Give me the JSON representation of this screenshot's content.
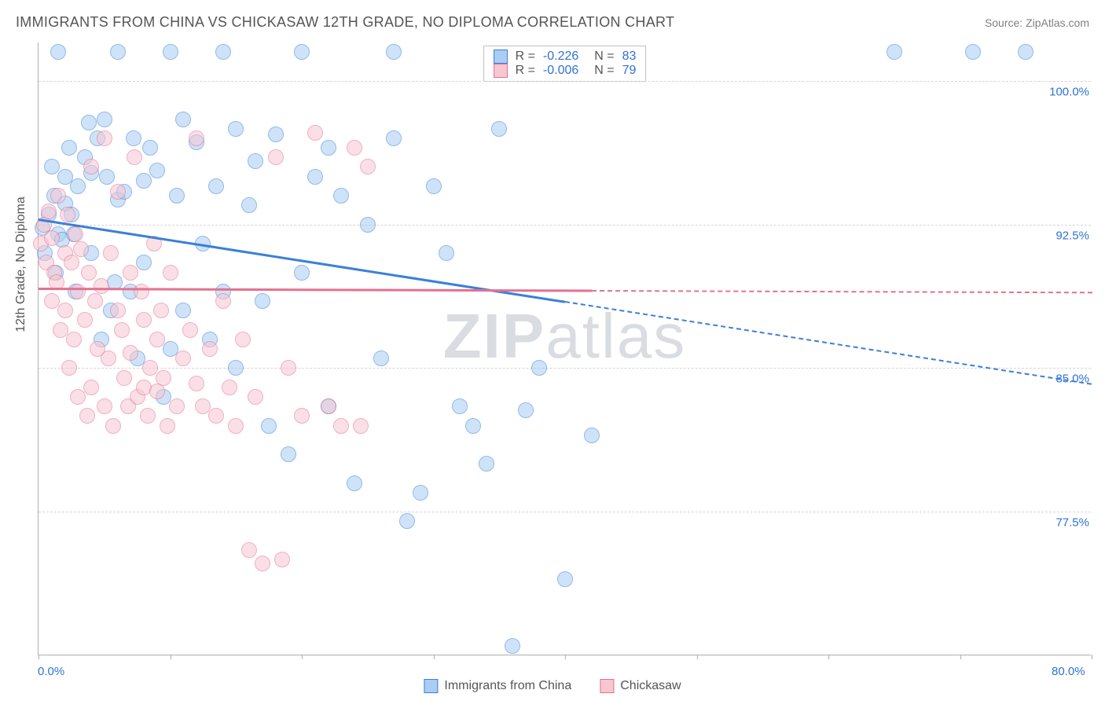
{
  "title": "IMMIGRANTS FROM CHINA VS CHICKASAW 12TH GRADE, NO DIPLOMA CORRELATION CHART",
  "source_label": "Source: ZipAtlas.com",
  "y_axis_label": "12th Grade, No Diploma",
  "watermark": {
    "bold": "ZIP",
    "light": "atlas"
  },
  "chart": {
    "type": "scatter",
    "background_color": "#ffffff",
    "grid_color": "#d5d5d5",
    "axis_color": "#b0b0b0",
    "xlim": [
      0,
      80
    ],
    "ylim": [
      70,
      102
    ],
    "x_ticks": [
      0,
      10,
      20,
      30,
      40,
      50,
      60,
      70,
      80
    ],
    "x_tick_labels": {
      "0": "0.0%",
      "80": "80.0%"
    },
    "y_ticks": [
      77.5,
      85.0,
      92.5,
      100.0
    ],
    "y_tick_labels": [
      "77.5%",
      "85.0%",
      "92.5%",
      "100.0%"
    ],
    "marker_radius": 10,
    "marker_opacity": 0.55,
    "label_fontsize": 15,
    "tick_color": "#2f72d6"
  },
  "series": [
    {
      "name": "Immigrants from China",
      "color_fill": "#a9cdf3",
      "color_stroke": "#3a80d8",
      "R": "-0.226",
      "N": "83",
      "regression": {
        "x1": 0,
        "y1": 92.8,
        "x2": 80,
        "y2": 84.2,
        "dash_after_x": 40
      },
      "points": [
        [
          0.3,
          92.3
        ],
        [
          0.5,
          91.0
        ],
        [
          0.8,
          93.0
        ],
        [
          1.0,
          95.5
        ],
        [
          1.2,
          94.0
        ],
        [
          1.3,
          90.0
        ],
        [
          1.5,
          92.0
        ],
        [
          1.5,
          101.5
        ],
        [
          1.8,
          91.7
        ],
        [
          2.0,
          95.0
        ],
        [
          2.0,
          93.6
        ],
        [
          2.3,
          96.5
        ],
        [
          2.5,
          93.0
        ],
        [
          2.7,
          92.0
        ],
        [
          2.8,
          89.0
        ],
        [
          3.0,
          94.5
        ],
        [
          3.5,
          96.0
        ],
        [
          3.8,
          97.8
        ],
        [
          4.0,
          95.2
        ],
        [
          4.0,
          91.0
        ],
        [
          4.5,
          97.0
        ],
        [
          4.8,
          86.5
        ],
        [
          5.0,
          98.0
        ],
        [
          5.2,
          95.0
        ],
        [
          5.5,
          88.0
        ],
        [
          5.8,
          89.5
        ],
        [
          6.0,
          93.8
        ],
        [
          6.0,
          101.5
        ],
        [
          6.5,
          94.2
        ],
        [
          7.0,
          89.0
        ],
        [
          7.2,
          97.0
        ],
        [
          7.5,
          85.5
        ],
        [
          8.0,
          90.5
        ],
        [
          8.0,
          94.8
        ],
        [
          8.5,
          96.5
        ],
        [
          9.0,
          95.3
        ],
        [
          9.5,
          83.5
        ],
        [
          10.0,
          86.0
        ],
        [
          10.0,
          101.5
        ],
        [
          10.5,
          94.0
        ],
        [
          11.0,
          88.0
        ],
        [
          11.0,
          98.0
        ],
        [
          12.0,
          96.8
        ],
        [
          12.5,
          91.5
        ],
        [
          13.0,
          86.5
        ],
        [
          13.5,
          94.5
        ],
        [
          14.0,
          101.5
        ],
        [
          14.0,
          89.0
        ],
        [
          15.0,
          85.0
        ],
        [
          15.0,
          97.5
        ],
        [
          16.0,
          93.5
        ],
        [
          16.5,
          95.8
        ],
        [
          17.0,
          88.5
        ],
        [
          17.5,
          82.0
        ],
        [
          18.0,
          97.2
        ],
        [
          19.0,
          80.5
        ],
        [
          20.0,
          101.5
        ],
        [
          20.0,
          90.0
        ],
        [
          21.0,
          95.0
        ],
        [
          22.0,
          96.5
        ],
        [
          22.0,
          83.0
        ],
        [
          23.0,
          94.0
        ],
        [
          24.0,
          79.0
        ],
        [
          25.0,
          92.5
        ],
        [
          26.0,
          85.5
        ],
        [
          27.0,
          97.0
        ],
        [
          27.0,
          101.5
        ],
        [
          28.0,
          77.0
        ],
        [
          29.0,
          78.5
        ],
        [
          30.0,
          94.5
        ],
        [
          31.0,
          91.0
        ],
        [
          32.0,
          83.0
        ],
        [
          33.0,
          82.0
        ],
        [
          34.0,
          80.0
        ],
        [
          35.0,
          97.5
        ],
        [
          36.0,
          70.5
        ],
        [
          37.0,
          82.8
        ],
        [
          38.0,
          85.0
        ],
        [
          40.0,
          74.0
        ],
        [
          42.0,
          81.5
        ],
        [
          65.0,
          101.5
        ],
        [
          71.0,
          101.5
        ],
        [
          75.0,
          101.5
        ]
      ]
    },
    {
      "name": "Chickasaw",
      "color_fill": "#f6c6d2",
      "color_stroke": "#e4718f",
      "R": "-0.006",
      "N": "79",
      "regression": {
        "x1": 0,
        "y1": 89.2,
        "x2": 80,
        "y2": 89.0,
        "dash_after_x": 42
      },
      "points": [
        [
          0.2,
          91.5
        ],
        [
          0.4,
          92.5
        ],
        [
          0.6,
          90.5
        ],
        [
          0.8,
          93.2
        ],
        [
          1.0,
          91.8
        ],
        [
          1.0,
          88.5
        ],
        [
          1.2,
          90.0
        ],
        [
          1.4,
          89.5
        ],
        [
          1.5,
          94.0
        ],
        [
          1.7,
          87.0
        ],
        [
          2.0,
          88.0
        ],
        [
          2.0,
          91.0
        ],
        [
          2.2,
          93.0
        ],
        [
          2.3,
          85.0
        ],
        [
          2.5,
          90.5
        ],
        [
          2.7,
          86.5
        ],
        [
          2.8,
          92.0
        ],
        [
          3.0,
          83.5
        ],
        [
          3.0,
          89.0
        ],
        [
          3.2,
          91.2
        ],
        [
          3.5,
          87.5
        ],
        [
          3.7,
          82.5
        ],
        [
          3.8,
          90.0
        ],
        [
          4.0,
          95.5
        ],
        [
          4.0,
          84.0
        ],
        [
          4.3,
          88.5
        ],
        [
          4.5,
          86.0
        ],
        [
          4.8,
          89.3
        ],
        [
          5.0,
          83.0
        ],
        [
          5.0,
          97.0
        ],
        [
          5.3,
          85.5
        ],
        [
          5.5,
          91.0
        ],
        [
          5.7,
          82.0
        ],
        [
          6.0,
          88.0
        ],
        [
          6.0,
          94.2
        ],
        [
          6.3,
          87.0
        ],
        [
          6.5,
          84.5
        ],
        [
          6.8,
          83.0
        ],
        [
          7.0,
          90.0
        ],
        [
          7.0,
          85.8
        ],
        [
          7.3,
          96.0
        ],
        [
          7.5,
          83.5
        ],
        [
          7.8,
          89.0
        ],
        [
          8.0,
          84.0
        ],
        [
          8.0,
          87.5
        ],
        [
          8.3,
          82.5
        ],
        [
          8.5,
          85.0
        ],
        [
          8.8,
          91.5
        ],
        [
          9.0,
          83.8
        ],
        [
          9.0,
          86.5
        ],
        [
          9.3,
          88.0
        ],
        [
          9.5,
          84.5
        ],
        [
          9.8,
          82.0
        ],
        [
          10.0,
          90.0
        ],
        [
          10.5,
          83.0
        ],
        [
          11.0,
          85.5
        ],
        [
          11.5,
          87.0
        ],
        [
          12.0,
          84.2
        ],
        [
          12.0,
          97.0
        ],
        [
          12.5,
          83.0
        ],
        [
          13.0,
          86.0
        ],
        [
          13.5,
          82.5
        ],
        [
          14.0,
          88.5
        ],
        [
          14.5,
          84.0
        ],
        [
          15.0,
          82.0
        ],
        [
          15.5,
          86.5
        ],
        [
          16.0,
          75.5
        ],
        [
          16.5,
          83.5
        ],
        [
          17.0,
          74.8
        ],
        [
          18.0,
          96.0
        ],
        [
          18.5,
          75.0
        ],
        [
          19.0,
          85.0
        ],
        [
          20.0,
          82.5
        ],
        [
          21.0,
          97.3
        ],
        [
          22.0,
          83.0
        ],
        [
          23.0,
          82.0
        ],
        [
          24.0,
          96.5
        ],
        [
          24.5,
          82.0
        ],
        [
          25.0,
          95.5
        ]
      ]
    }
  ],
  "legend_stats": {
    "r_label": "R =",
    "n_label": "N ="
  }
}
